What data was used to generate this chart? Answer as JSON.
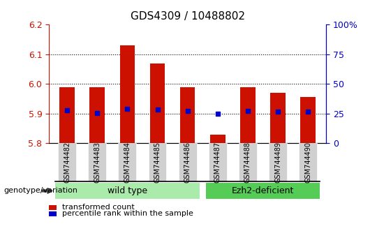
{
  "title": "GDS4309 / 10488802",
  "samples": [
    "GSM744482",
    "GSM744483",
    "GSM744484",
    "GSM744485",
    "GSM744486",
    "GSM744487",
    "GSM744488",
    "GSM744489",
    "GSM744490"
  ],
  "bar_values": [
    5.99,
    5.99,
    6.13,
    6.07,
    5.99,
    5.83,
    5.99,
    5.97,
    5.955
  ],
  "dot_values": [
    5.912,
    5.902,
    5.915,
    5.913,
    5.908,
    5.9,
    5.908,
    5.906,
    5.906
  ],
  "ylim_left": [
    5.8,
    6.2
  ],
  "ylim_right": [
    0,
    100
  ],
  "yticks_left": [
    5.8,
    5.9,
    6.0,
    6.1,
    6.2
  ],
  "yticks_right": [
    0,
    25,
    50,
    75,
    100
  ],
  "ytick_right_labels": [
    "0",
    "25",
    "50",
    "75",
    "100%"
  ],
  "grid_lines": [
    5.9,
    6.0,
    6.1
  ],
  "bar_color": "#CC1100",
  "bar_baseline": 5.8,
  "dot_color": "#0000CC",
  "group1_label": "wild type",
  "group1_end": 4,
  "group2_label": "Ezh2-deficient",
  "group2_start": 5,
  "group1_color": "#AAEAAA",
  "group2_color": "#55CC55",
  "legend_bar_label": "transformed count",
  "legend_dot_label": "percentile rank within the sample",
  "ylabel_left_color": "#CC1100",
  "ylabel_right_color": "#0000CC",
  "title_fontsize": 11,
  "tick_fontsize": 9,
  "bar_width": 0.5,
  "xlim": [
    -0.6,
    8.6
  ]
}
